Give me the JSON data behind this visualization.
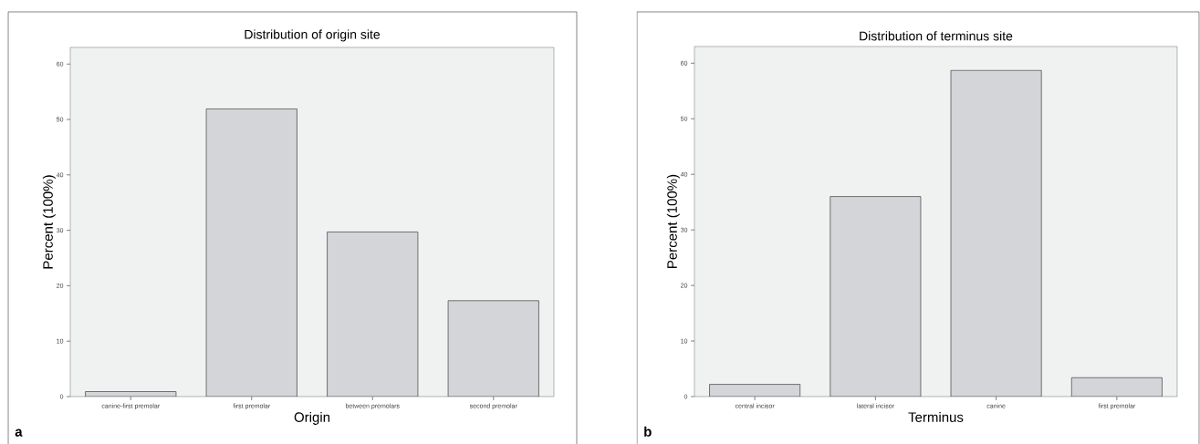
{
  "chart_data": [
    {
      "type": "bar",
      "title": "Distribution of origin site",
      "xlabel": "Origin",
      "ylabel": "Percent (100%)",
      "categories": [
        "canine-first premolar",
        "first premolar",
        "between premolars",
        "second premolar"
      ],
      "values": [
        0.9,
        51.9,
        29.7,
        17.3
      ],
      "color": "#d3d5d8",
      "ylim": [
        0,
        63
      ],
      "yticks": [
        0,
        10,
        20,
        30,
        40,
        50,
        60
      ],
      "grid": false,
      "annotations": [
        "a"
      ]
    },
    {
      "type": "bar",
      "title": "Distribution of terminus site",
      "xlabel": "Terminus",
      "ylabel": "Percent (100%)",
      "categories": [
        "central incisor",
        "lateral incisor",
        "canine",
        "first premolar"
      ],
      "values": [
        2.2,
        36.0,
        58.7,
        3.4
      ],
      "color": "#d3d5d8",
      "ylim": [
        0,
        63
      ],
      "yticks": [
        0,
        10,
        20,
        30,
        40,
        50,
        60
      ],
      "grid": false,
      "annotations": [
        "b"
      ]
    }
  ]
}
